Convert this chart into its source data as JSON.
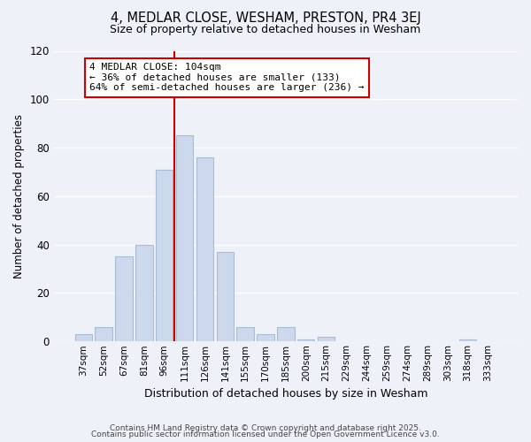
{
  "title": "4, MEDLAR CLOSE, WESHAM, PRESTON, PR4 3EJ",
  "subtitle": "Size of property relative to detached houses in Wesham",
  "xlabel": "Distribution of detached houses by size in Wesham",
  "ylabel": "Number of detached properties",
  "bar_color": "#ccd9ed",
  "bar_edge_color": "#aabbd6",
  "background_color": "#eef2f8",
  "grid_color": "#ffffff",
  "categories": [
    "37sqm",
    "52sqm",
    "67sqm",
    "81sqm",
    "96sqm",
    "111sqm",
    "126sqm",
    "141sqm",
    "155sqm",
    "170sqm",
    "185sqm",
    "200sqm",
    "215sqm",
    "229sqm",
    "244sqm",
    "259sqm",
    "274sqm",
    "289sqm",
    "303sqm",
    "318sqm",
    "333sqm"
  ],
  "values": [
    3,
    6,
    35,
    40,
    71,
    85,
    76,
    37,
    6,
    3,
    6,
    1,
    2,
    0,
    0,
    0,
    0,
    0,
    0,
    1,
    0
  ],
  "ylim": [
    0,
    120
  ],
  "yticks": [
    0,
    20,
    40,
    60,
    80,
    100,
    120
  ],
  "vline_color": "#cc0000",
  "annotation_title": "4 MEDLAR CLOSE: 104sqm",
  "annotation_line1": "← 36% of detached houses are smaller (133)",
  "annotation_line2": "64% of semi-detached houses are larger (236) →",
  "annotation_box_color": "#ffffff",
  "annotation_box_edge": "#cc0000",
  "footer1": "Contains HM Land Registry data © Crown copyright and database right 2025.",
  "footer2": "Contains public sector information licensed under the Open Government Licence v3.0."
}
